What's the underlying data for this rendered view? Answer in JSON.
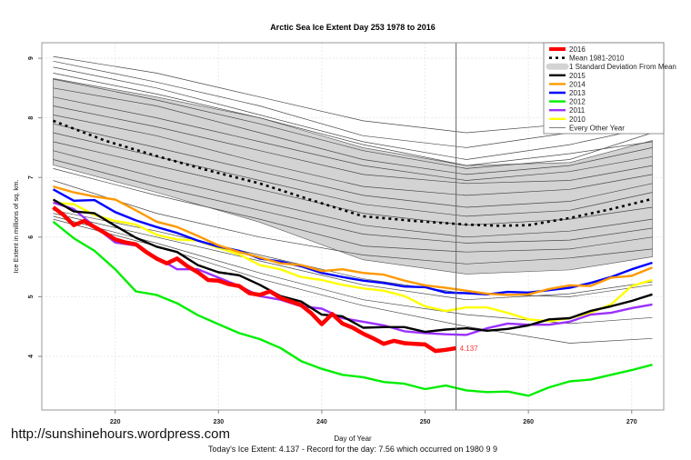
{
  "chart_data": {
    "type": "line",
    "title": "Arctic Sea Ice Extent Day 253 1978 to 2016",
    "xlabel": "Day of Year",
    "ylabel": "Ice Extent in millions of sq. km.",
    "xlim": [
      212.9,
      273.1
    ],
    "ylim": [
      3.1,
      9.26
    ],
    "xticks": [
      220,
      230,
      240,
      250,
      260,
      270
    ],
    "yticks": [
      4,
      5,
      6,
      7,
      8,
      9
    ],
    "grid": true,
    "legend_position": "top-right",
    "current_day": 253,
    "current_value_label": "4.137",
    "legend": [
      {
        "label": "2016",
        "style": "thick",
        "color": "#ff0000"
      },
      {
        "label": "Mean 1981-2010",
        "style": "dotted",
        "color": "#000000"
      },
      {
        "label": "1 Standard Deviation From Mean",
        "style": "band",
        "color": "#d3d3d3"
      },
      {
        "label": "2015",
        "style": "line",
        "color": "#000000"
      },
      {
        "label": "2014",
        "style": "line",
        "color": "#ff9900"
      },
      {
        "label": "2013",
        "style": "line",
        "color": "#0000ff"
      },
      {
        "label": "2012",
        "style": "line",
        "color": "#00ee00"
      },
      {
        "label": "2011",
        "style": "line",
        "color": "#9b30ff"
      },
      {
        "label": "2010",
        "style": "line",
        "color": "#ffff00"
      },
      {
        "label": "Every Other Year",
        "style": "thin",
        "color": "#555555"
      }
    ],
    "sd_band": {
      "x": [
        214,
        224,
        234,
        244,
        254,
        264,
        272
      ],
      "upper": [
        8.66,
        8.35,
        8.0,
        7.5,
        7.2,
        7.25,
        7.62
      ],
      "lower": [
        7.21,
        6.75,
        6.25,
        5.62,
        5.38,
        5.45,
        5.67
      ]
    },
    "mean": {
      "name": "Mean 1981-2010",
      "x": [
        214,
        219,
        224,
        229,
        234,
        239,
        244,
        249,
        254,
        257,
        260,
        264,
        268,
        272
      ],
      "values": [
        7.95,
        7.62,
        7.36,
        7.12,
        6.9,
        6.62,
        6.35,
        6.27,
        6.21,
        6.19,
        6.2,
        6.32,
        6.47,
        6.64
      ]
    },
    "other_years": {
      "name": "Every Other Year",
      "x": [
        214,
        224,
        234,
        244,
        254,
        264,
        272
      ],
      "series": [
        [
          9.03,
          8.75,
          8.35,
          7.95,
          7.75,
          7.9,
          8.3
        ],
        [
          8.95,
          8.6,
          8.2,
          7.7,
          7.5,
          7.75,
          8.15
        ],
        [
          8.85,
          8.5,
          8.05,
          7.6,
          7.3,
          7.55,
          7.85
        ],
        [
          8.75,
          8.4,
          8.0,
          7.55,
          7.2,
          7.4,
          7.6
        ],
        [
          8.65,
          8.3,
          7.9,
          7.45,
          7.15,
          7.3,
          7.75
        ],
        [
          8.5,
          8.2,
          7.75,
          7.3,
          7.05,
          7.2,
          7.5
        ],
        [
          8.35,
          8.0,
          7.6,
          7.2,
          6.95,
          7.1,
          7.35
        ],
        [
          8.2,
          7.85,
          7.45,
          7.05,
          6.9,
          6.95,
          7.2
        ],
        [
          8.05,
          7.7,
          7.25,
          6.85,
          6.7,
          6.8,
          7.05
        ],
        [
          7.9,
          7.5,
          7.1,
          6.7,
          6.5,
          6.6,
          6.9
        ],
        [
          7.75,
          7.35,
          6.95,
          6.55,
          6.35,
          6.45,
          6.75
        ],
        [
          7.6,
          7.2,
          6.8,
          6.4,
          6.2,
          6.3,
          6.5
        ],
        [
          7.45,
          7.0,
          6.6,
          6.2,
          6.0,
          6.1,
          6.3
        ],
        [
          7.3,
          6.85,
          6.45,
          6.05,
          5.9,
          5.95,
          6.15
        ],
        [
          7.15,
          6.7,
          6.3,
          5.85,
          5.75,
          5.8,
          6.0
        ],
        [
          6.95,
          6.4,
          6.0,
          5.7,
          5.55,
          5.65,
          5.8
        ],
        [
          6.4,
          6.0,
          5.6,
          5.2,
          4.95,
          5.05,
          5.25
        ],
        [
          6.45,
          6.1,
          5.7,
          5.3,
          5.05,
          5.0,
          5.2
        ],
        [
          6.35,
          5.9,
          5.4,
          4.95,
          4.7,
          4.55,
          4.65
        ],
        [
          6.3,
          5.85,
          5.3,
          4.85,
          4.5,
          4.22,
          4.3
        ]
      ]
    },
    "year_x": [
      214,
      216,
      218,
      220,
      222,
      224,
      226,
      228,
      230,
      232,
      234,
      236,
      238,
      240,
      242,
      244,
      246,
      248,
      250,
      252,
      254,
      256,
      258,
      260,
      262,
      264,
      266,
      268,
      270,
      272
    ],
    "series": [
      {
        "name": "2010",
        "color": "#ffff00",
        "values": [
          6.58,
          6.55,
          6.37,
          6.27,
          6.21,
          6.04,
          5.96,
          5.94,
          5.82,
          5.71,
          5.53,
          5.46,
          5.33,
          5.28,
          5.2,
          5.14,
          5.1,
          5.01,
          4.84,
          4.76,
          4.82,
          4.82,
          4.73,
          4.62,
          4.59,
          4.64,
          4.73,
          4.87,
          5.18,
          5.28
        ]
      },
      {
        "name": "2011",
        "color": "#9b30ff",
        "values": [
          6.58,
          6.47,
          6.18,
          5.91,
          5.86,
          5.66,
          5.46,
          5.46,
          5.32,
          5.18,
          5.01,
          4.95,
          4.84,
          4.8,
          4.64,
          4.58,
          4.52,
          4.42,
          4.39,
          4.37,
          4.36,
          4.47,
          4.55,
          4.53,
          4.53,
          4.58,
          4.7,
          4.73,
          4.81,
          4.87
        ]
      },
      {
        "name": "2012",
        "color": "#00ee00",
        "values": [
          6.26,
          5.98,
          5.77,
          5.46,
          5.09,
          5.03,
          4.89,
          4.69,
          4.54,
          4.39,
          4.29,
          4.14,
          3.92,
          3.79,
          3.69,
          3.65,
          3.57,
          3.54,
          3.45,
          3.51,
          3.43,
          3.4,
          3.41,
          3.34,
          3.48,
          3.58,
          3.61,
          3.69,
          3.77,
          3.86
        ]
      },
      {
        "name": "2013",
        "color": "#0000ff",
        "values": [
          6.8,
          6.61,
          6.62,
          6.42,
          6.28,
          6.17,
          6.07,
          5.94,
          5.84,
          5.77,
          5.64,
          5.59,
          5.51,
          5.4,
          5.33,
          5.27,
          5.23,
          5.17,
          5.16,
          5.07,
          5.06,
          5.04,
          5.08,
          5.07,
          5.11,
          5.15,
          5.23,
          5.33,
          5.46,
          5.57
        ]
      },
      {
        "name": "2014",
        "color": "#ff9900",
        "values": [
          6.85,
          6.75,
          6.68,
          6.63,
          6.45,
          6.26,
          6.17,
          6.02,
          5.86,
          5.75,
          5.66,
          5.56,
          5.53,
          5.43,
          5.46,
          5.4,
          5.37,
          5.27,
          5.19,
          5.15,
          5.1,
          5.05,
          5.03,
          5.04,
          5.13,
          5.19,
          5.18,
          5.32,
          5.35,
          5.49
        ]
      },
      {
        "name": "2015",
        "color": "#000000",
        "values": [
          6.63,
          6.43,
          6.4,
          6.19,
          5.99,
          5.84,
          5.75,
          5.53,
          5.41,
          5.36,
          5.2,
          5.01,
          4.92,
          4.7,
          4.67,
          4.48,
          4.49,
          4.49,
          4.41,
          4.45,
          4.47,
          4.43,
          4.46,
          4.52,
          4.62,
          4.64,
          4.76,
          4.84,
          4.93,
          5.04
        ]
      }
    ],
    "current": {
      "name": "2016",
      "color": "#ff0000",
      "x": [
        214,
        215,
        216,
        217,
        218,
        219,
        220,
        221,
        222,
        223,
        224,
        225,
        226,
        227,
        228,
        229,
        230,
        231,
        232,
        233,
        234,
        235,
        236,
        237,
        238,
        239,
        240,
        241,
        242,
        243,
        244,
        245,
        246,
        247,
        248,
        249,
        250,
        251,
        252,
        253
      ],
      "values": [
        6.5,
        6.37,
        6.2,
        6.27,
        6.17,
        6.07,
        5.96,
        5.91,
        5.88,
        5.75,
        5.64,
        5.56,
        5.64,
        5.51,
        5.41,
        5.28,
        5.27,
        5.21,
        5.18,
        5.06,
        5.03,
        5.09,
        4.98,
        4.92,
        4.86,
        4.72,
        4.54,
        4.71,
        4.55,
        4.48,
        4.38,
        4.3,
        4.21,
        4.26,
        4.22,
        4.21,
        4.2,
        4.09,
        4.11,
        4.137
      ]
    }
  },
  "watermark": "http://sunshinehours.wordpress.com",
  "footer": "Today's Ice Extent: 4.137  - Record for the day: 7.56 which occurred on 1980 9 9"
}
